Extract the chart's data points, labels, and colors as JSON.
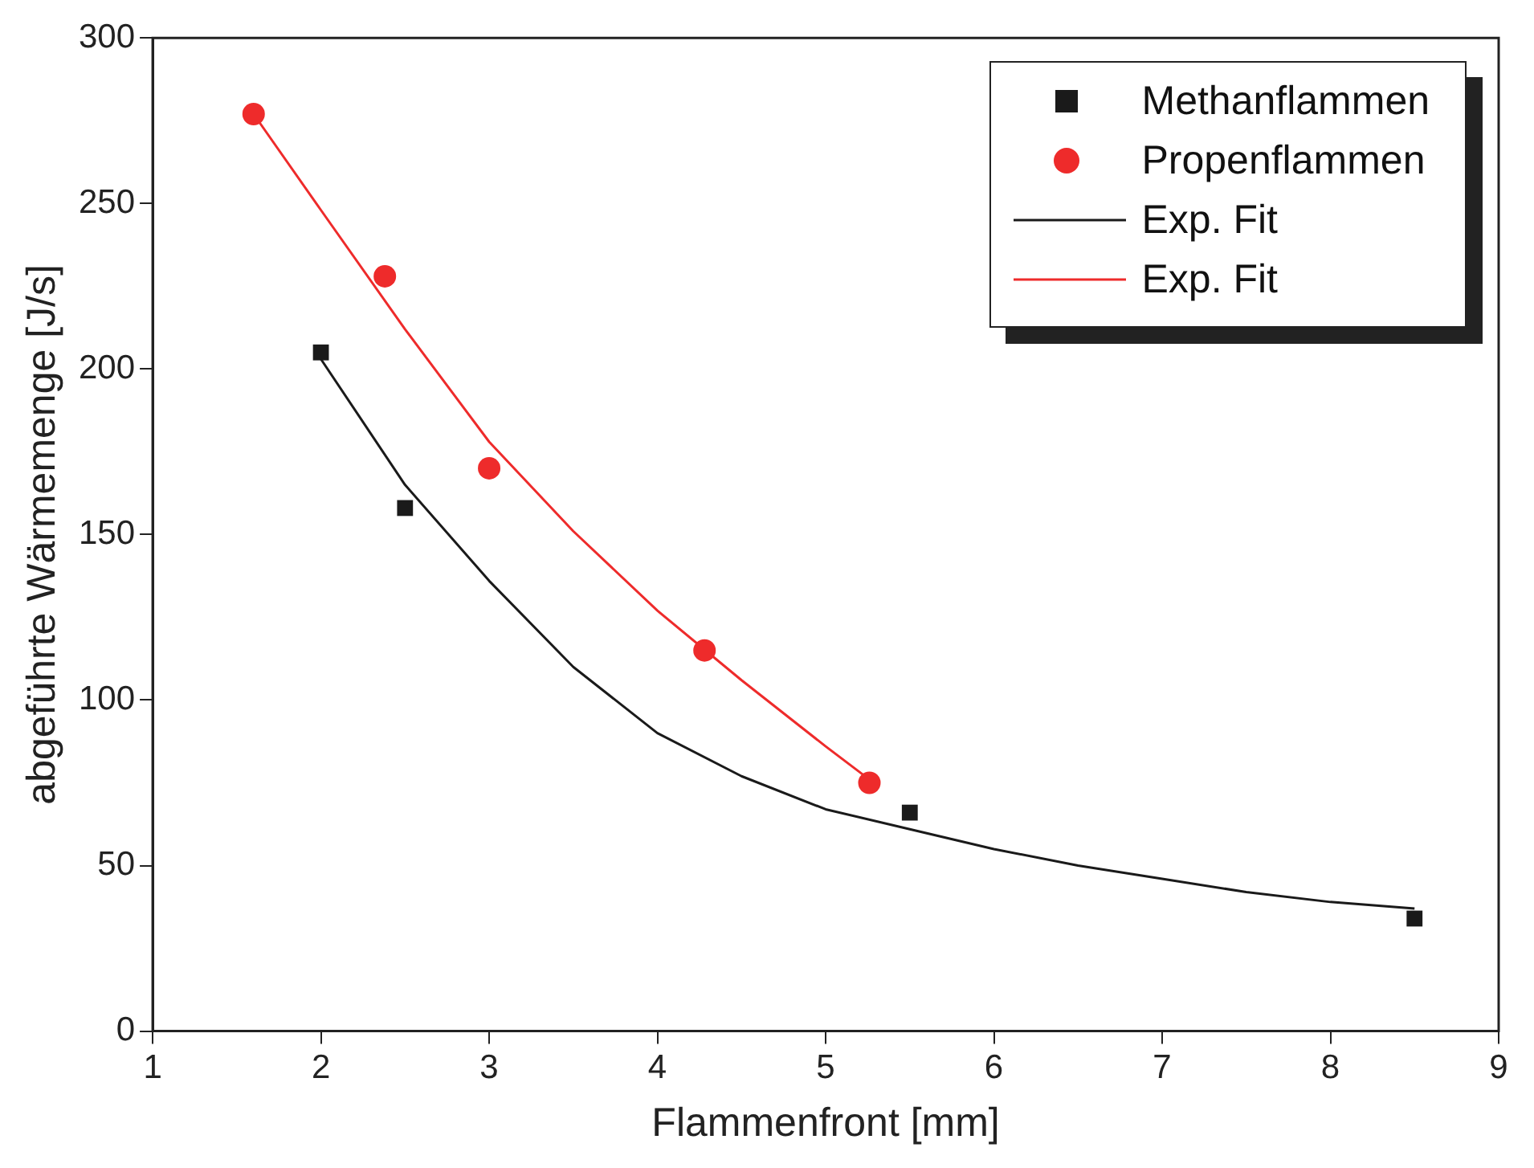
{
  "chart_data": {
    "type": "scatter",
    "xlabel": "Flammenfront [mm]",
    "ylabel": "abgeführte Wärmemenge [J/s]",
    "xlim": [
      1,
      9
    ],
    "xticks": [
      1,
      2,
      3,
      4,
      5,
      6,
      7,
      8,
      9
    ],
    "ylim": [
      0,
      300
    ],
    "yticks": [
      0,
      50,
      100,
      150,
      200,
      250,
      300
    ],
    "grid": false,
    "legend": "top right",
    "series": [
      {
        "name": "Methanflammen",
        "marker": "square",
        "color": "#1a1a1a",
        "x": [
          2,
          2.5,
          5.5,
          8.5
        ],
        "values": [
          205,
          158,
          66,
          34
        ]
      },
      {
        "name": "Propenflammen",
        "marker": "circle",
        "color": "#ee2b2b",
        "x": [
          1.6,
          2.38,
          3.0,
          4.28,
          5.26
        ],
        "values": [
          277,
          228,
          170,
          115,
          75
        ]
      },
      {
        "name": "Exp. Fit",
        "type": "line",
        "marker": "none",
        "color": "#1a1a1a",
        "x": [
          2,
          2.5,
          3,
          3.5,
          4,
          4.5,
          5,
          5.5,
          6,
          6.5,
          7,
          7.5,
          8,
          8.5
        ],
        "values": [
          203,
          165,
          136,
          110,
          90,
          77,
          67,
          61,
          55,
          50,
          46,
          42,
          39,
          37
        ]
      },
      {
        "name": "Exp. Fit",
        "type": "line",
        "marker": "none",
        "color": "#ee2b2b",
        "x": [
          1.6,
          2,
          2.5,
          3,
          3.5,
          4,
          4.5,
          5,
          5.26
        ],
        "values": [
          277,
          248,
          212,
          178,
          151,
          127,
          106,
          86,
          76
        ]
      }
    ]
  }
}
